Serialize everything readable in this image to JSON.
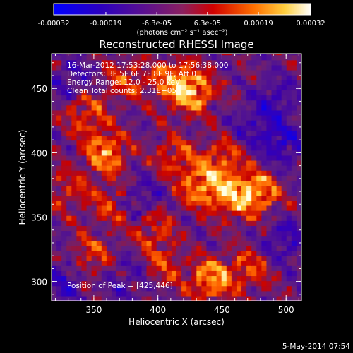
{
  "colorbar": {
    "ticks": [
      {
        "value": -0.00032,
        "label": "-0.00032"
      },
      {
        "value": -0.00019,
        "label": "-0.00019"
      },
      {
        "value": -6.3e-05,
        "label": "-6.3e-05"
      },
      {
        "value": 6.3e-05,
        "label": "6.3e-05"
      },
      {
        "value": 0.00019,
        "label": "0.00019"
      },
      {
        "value": 0.00032,
        "label": "0.00032"
      }
    ],
    "range": [
      -0.00032,
      0.00032
    ],
    "unit_label": "(photons cm⁻² s⁻¹ asec⁻²)",
    "colors": [
      "#0000ff",
      "#4b0082",
      "#7a2080",
      "#d00000",
      "#ff8000",
      "#ffff80",
      "#ffffff"
    ]
  },
  "chart_data": {
    "type": "heatmap",
    "title": "Reconstructed RHESSI Image",
    "xlabel": "Heliocentric X (arcsec)",
    "ylabel": "Heliocentric Y (arcsec)",
    "xlim": [
      317,
      512
    ],
    "ylim": [
      285,
      477
    ],
    "xticks": [
      {
        "value": 350,
        "label": "350"
      },
      {
        "value": 400,
        "label": "400"
      },
      {
        "value": 450,
        "label": "450"
      },
      {
        "value": 500,
        "label": "500"
      }
    ],
    "yticks": [
      {
        "value": 300,
        "label": "300"
      },
      {
        "value": 350,
        "label": "350"
      },
      {
        "value": 400,
        "label": "400"
      },
      {
        "value": 450,
        "label": "450"
      }
    ],
    "annotations": [
      "16-Mar-2012 17:53:28.000 to 17:56:38.000",
      "Detectors: 3F 5F 6F 7F 8F 9F, Att 0",
      "Energy Range: 12.0 - 25.0 keV",
      "Clean     Total counts: 2.31E+05"
    ],
    "peak_label": "Position of Peak = [425,446]",
    "peak": [
      425,
      446
    ],
    "bright_regions": [
      {
        "x": 357,
        "y": 398,
        "level": 0.9
      },
      {
        "x": 342,
        "y": 428,
        "level": 0.6
      },
      {
        "x": 372,
        "y": 455,
        "level": 0.55
      },
      {
        "x": 425,
        "y": 446,
        "level": 1.0
      },
      {
        "x": 408,
        "y": 455,
        "level": 0.7
      },
      {
        "x": 432,
        "y": 372,
        "level": 0.85
      },
      {
        "x": 458,
        "y": 365,
        "level": 0.9
      },
      {
        "x": 478,
        "y": 368,
        "level": 0.8
      },
      {
        "x": 448,
        "y": 392,
        "level": 0.6
      },
      {
        "x": 412,
        "y": 395,
        "level": 0.55
      },
      {
        "x": 362,
        "y": 358,
        "level": 0.5
      },
      {
        "x": 345,
        "y": 318,
        "level": 0.55
      },
      {
        "x": 440,
        "y": 300,
        "level": 0.95
      },
      {
        "x": 470,
        "y": 308,
        "level": 0.55
      },
      {
        "x": 402,
        "y": 310,
        "level": 0.5
      },
      {
        "x": 395,
        "y": 340,
        "level": 0.55
      },
      {
        "x": 328,
        "y": 370,
        "level": 0.45
      }
    ],
    "dark_regions": [
      {
        "x": 385,
        "y": 362,
        "level": -0.5
      },
      {
        "x": 495,
        "y": 405,
        "level": -0.6
      },
      {
        "x": 490,
        "y": 440,
        "level": -0.45
      },
      {
        "x": 330,
        "y": 455,
        "level": -0.4
      },
      {
        "x": 495,
        "y": 330,
        "level": -0.5
      },
      {
        "x": 325,
        "y": 300,
        "level": -0.45
      },
      {
        "x": 375,
        "y": 300,
        "level": -0.35
      },
      {
        "x": 472,
        "y": 420,
        "level": -0.35
      }
    ]
  },
  "footer": {
    "timestamp": "5-May-2014 07:54"
  }
}
